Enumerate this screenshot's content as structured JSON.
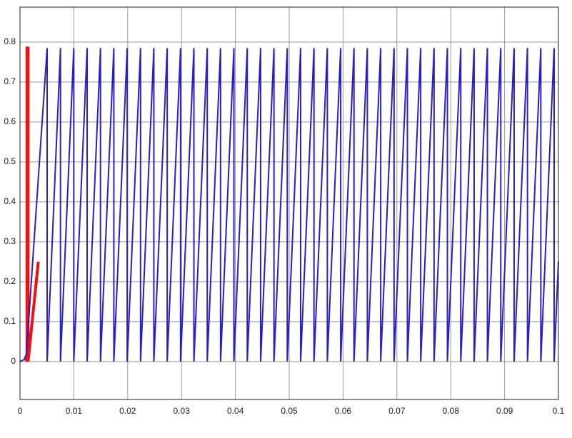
{
  "chart_data": {
    "type": "line",
    "xlim": [
      0,
      0.1
    ],
    "xticks": [
      0,
      0.01,
      0.02,
      0.03,
      0.04,
      0.05,
      0.06,
      0.07,
      0.08,
      0.09,
      0.1
    ],
    "ylim": [
      -0.095,
      0.8875
    ],
    "yticks": [
      0,
      0.1,
      0.2,
      0.3,
      0.4,
      0.5,
      0.6,
      0.7,
      0.8
    ],
    "grid": true,
    "series": [
      {
        "color": "#ee1111",
        "width": 4,
        "x": [
          0.0012,
          0.0013,
          0.0013,
          0.0015,
          0.0015,
          0.0034
        ],
        "values": [
          0,
          0.02,
          0.785,
          0.785,
          0,
          0.25
        ]
      },
      {
        "color": "#2a1fc4",
        "width": 2,
        "x": [
          0,
          0.0008,
          0.0012,
          0.00504,
          0.00504,
          0.00752,
          0.00752,
          0.00999,
          0.00999,
          0.01247,
          0.01247,
          0.01495,
          0.01495,
          0.01743,
          0.01743,
          0.01991,
          0.01991,
          0.02239,
          0.02239,
          0.02486,
          0.02486,
          0.02734,
          0.02734,
          0.02982,
          0.02982,
          0.0323,
          0.0323,
          0.03478,
          0.03478,
          0.03725,
          0.03725,
          0.03973,
          0.03973,
          0.04221,
          0.04221,
          0.04469,
          0.04469,
          0.04717,
          0.04717,
          0.04964,
          0.04964,
          0.05212,
          0.05212,
          0.0546,
          0.0546,
          0.05708,
          0.05708,
          0.05956,
          0.05956,
          0.06203,
          0.06203,
          0.06451,
          0.06451,
          0.06699,
          0.06699,
          0.06947,
          0.06947,
          0.07195,
          0.07195,
          0.07442,
          0.07442,
          0.0769,
          0.0769,
          0.07938,
          0.07938,
          0.08186,
          0.08186,
          0.08434,
          0.08434,
          0.08681,
          0.08681,
          0.08929,
          0.08929,
          0.09177,
          0.09177,
          0.09425,
          0.09425,
          0.09673,
          0.09673,
          0.0992,
          0.0992,
          0.1
        ],
        "values": [
          0,
          0.005,
          0.02,
          0.785,
          0,
          0.785,
          0,
          0.785,
          0,
          0.785,
          0,
          0.785,
          0,
          0.785,
          0,
          0.785,
          0,
          0.785,
          0,
          0.785,
          0,
          0.785,
          0,
          0.785,
          0,
          0.785,
          0,
          0.785,
          0,
          0.785,
          0,
          0.785,
          0,
          0.785,
          0,
          0.785,
          0,
          0.785,
          0,
          0.785,
          0,
          0.785,
          0,
          0.785,
          0,
          0.785,
          0,
          0.785,
          0,
          0.785,
          0,
          0.785,
          0,
          0.785,
          0,
          0.785,
          0,
          0.785,
          0,
          0.785,
          0,
          0.785,
          0,
          0.785,
          0,
          0.785,
          0,
          0.785,
          0,
          0.785,
          0,
          0.785,
          0,
          0.785,
          0,
          0.785,
          0,
          0.785,
          0,
          0.785,
          0,
          0.25
        ]
      }
    ]
  }
}
